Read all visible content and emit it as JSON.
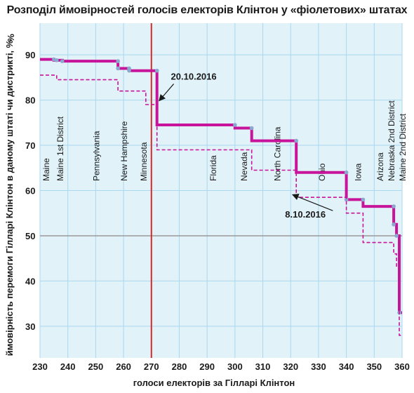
{
  "chart_data": {
    "type": "line",
    "title": "Розподіл ймовірностей голосів електорів Клінтон у «фіолетових» штатах",
    "xlabel": "голоси електорів за Гілларі Клінтон",
    "ylabel": "ймовірність перемоги Гілларі Клінтон в даному штаті чи дистрикті, %",
    "xlim": [
      230,
      360
    ],
    "ylim": [
      23,
      97
    ],
    "xticks": [
      230,
      240,
      250,
      260,
      270,
      280,
      290,
      300,
      310,
      320,
      330,
      340,
      350,
      360
    ],
    "yticks": [
      30,
      40,
      50,
      60,
      70,
      80,
      90
    ],
    "colors": {
      "background": "#e1f2f9",
      "grid": "#a9d8ef",
      "series_main": "#c8149a",
      "points": "#8aa9cf",
      "reference_line": "#d42a2a",
      "fifty_line": "#9a9a9a"
    },
    "reference_x": 270,
    "series": [
      {
        "name": "20.10.2016",
        "style": "solid",
        "points": [
          [
            230,
            89
          ],
          [
            235,
            89
          ],
          [
            235,
            88.8
          ],
          [
            238,
            88.8
          ],
          [
            238,
            88.6
          ],
          [
            258,
            88.6
          ],
          [
            258,
            87
          ],
          [
            262,
            87
          ],
          [
            262,
            86.5
          ],
          [
            272,
            86.5
          ],
          [
            272,
            74.5
          ],
          [
            300,
            74.5
          ],
          [
            300,
            73.8
          ],
          [
            306,
            73.8
          ],
          [
            306,
            71
          ],
          [
            322,
            71
          ],
          [
            322,
            64
          ],
          [
            340,
            64
          ],
          [
            340,
            58
          ],
          [
            346,
            58
          ],
          [
            346,
            56.5
          ],
          [
            357,
            56.5
          ],
          [
            357,
            52.5
          ],
          [
            358,
            52.5
          ],
          [
            358,
            50
          ],
          [
            359,
            50
          ],
          [
            359,
            33
          ],
          [
            360,
            33
          ]
        ],
        "markers": [
          [
            235,
            89
          ],
          [
            236,
            88.8
          ],
          [
            238,
            88.6
          ],
          [
            258,
            88.6
          ],
          [
            258,
            87
          ],
          [
            262,
            87
          ],
          [
            262,
            86.5
          ],
          [
            272,
            86.5
          ],
          [
            300,
            74.5
          ],
          [
            306,
            73.8
          ],
          [
            322,
            71
          ],
          [
            340,
            64
          ],
          [
            340,
            58
          ],
          [
            346,
            58
          ],
          [
            357,
            56.5
          ],
          [
            357,
            52.5
          ],
          [
            358,
            50
          ],
          [
            359,
            33
          ]
        ]
      },
      {
        "name": "8.10.2016",
        "style": "dashed",
        "points": [
          [
            230,
            85.5
          ],
          [
            236,
            85.5
          ],
          [
            236,
            84.5
          ],
          [
            258,
            84.5
          ],
          [
            258,
            82
          ],
          [
            268,
            82
          ],
          [
            268,
            79
          ],
          [
            272,
            79
          ],
          [
            272,
            69
          ],
          [
            306,
            69
          ],
          [
            306,
            64.5
          ],
          [
            322,
            64.5
          ],
          [
            322,
            58.5
          ],
          [
            340,
            58.5
          ],
          [
            340,
            55
          ],
          [
            346,
            55
          ],
          [
            346,
            48.5
          ],
          [
            357,
            48.5
          ],
          [
            357,
            46
          ],
          [
            358,
            46
          ],
          [
            358,
            43
          ],
          [
            359,
            43
          ],
          [
            359,
            28
          ],
          [
            360,
            28
          ]
        ]
      }
    ],
    "annotations": [
      {
        "text": "20.10.2016",
        "x": 277,
        "y": 84.5,
        "arrow_to": [
          273,
          80
        ]
      },
      {
        "text": "8.10.2016",
        "x": 318,
        "y": 54,
        "arrow_to": [
          321,
          59
        ]
      }
    ],
    "state_labels": [
      {
        "text": "Maine",
        "x": 232
      },
      {
        "text": "Maine 1st District",
        "x": 237
      },
      {
        "text": "Pennsylvania",
        "x": 250
      },
      {
        "text": "New Hampshire",
        "x": 260
      },
      {
        "text": "Minnesota",
        "x": 267
      },
      {
        "text": "Florida",
        "x": 292
      },
      {
        "text": "Nevada",
        "x": 303
      },
      {
        "text": "North Carolina",
        "x": 315
      },
      {
        "text": "Ohio",
        "x": 331
      },
      {
        "text": "Iowa",
        "x": 344
      },
      {
        "text": "Arizona",
        "x": 352
      },
      {
        "text": "Nebraska 2nd District",
        "x": 356
      },
      {
        "text": "Maine 2nd District",
        "x": 360
      }
    ]
  }
}
